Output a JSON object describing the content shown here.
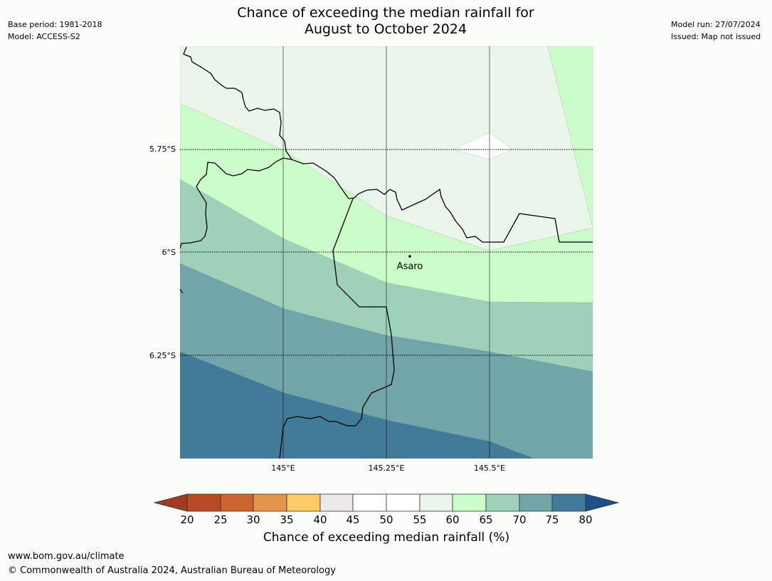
{
  "header": {
    "title_line1": "Chance of exceeding the median rainfall for",
    "title_line2": "August to October 2024",
    "left_line1": "Base period: 1981-2018",
    "left_line2": "Model: ACCESS-S2",
    "right_line1": "Model run: 27/07/2024",
    "right_line2": "Issued: Map not issued"
  },
  "map": {
    "lat_labels": [
      "5.75°S",
      "6°S",
      "6.25°S"
    ],
    "lon_labels": [
      "145°E",
      "145.25°E",
      "145.5°E"
    ],
    "place": {
      "name": "Asaro"
    },
    "zone_colors": {
      "55-60": "#eaf5eb",
      "50-55": "#ffffff",
      "60-65": "#ccfcc9",
      "65-70": "#9ed1b9",
      "70-75": "#71a5a9",
      "75-80": "#427a99"
    }
  },
  "colorbar": {
    "label": "Chance of exceeding median rainfall (%)",
    "ticks": [
      "20",
      "25",
      "30",
      "35",
      "40",
      "45",
      "50",
      "55",
      "60",
      "65",
      "70",
      "75",
      "80"
    ],
    "colors": [
      "#a03a22",
      "#b84a25",
      "#cd6332",
      "#e3964a",
      "#fdca66",
      "#ece9e6",
      "#ffffff",
      "#ffffff",
      "#eaf5eb",
      "#ccfcc9",
      "#9ed1b9",
      "#71a5a9",
      "#427a99",
      "#1b4f89"
    ]
  },
  "footer": {
    "url": "www.bom.gov.au/climate",
    "copyright": "© Commonwealth of Australia 2024, Australian Bureau of Meteorology"
  }
}
